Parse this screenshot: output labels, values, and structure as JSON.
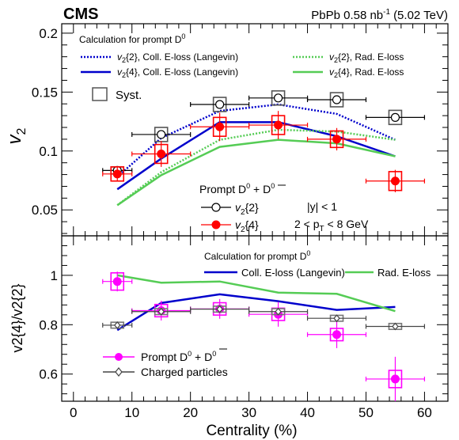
{
  "header": {
    "experiment": "CMS",
    "lumi_label": "PbPb 0.58 nb",
    "lumi_sup": "-1",
    "energy": "(5.02 TeV)"
  },
  "chart_data": [
    {
      "panel": "top",
      "type": "scatter",
      "ylabel": "v",
      "ylabel_sub": "2",
      "xlim": [
        -2,
        64
      ],
      "ylim": [
        0.028,
        0.208
      ],
      "yticks": [
        0.05,
        0.1,
        0.15,
        0.2
      ],
      "ytick_labels": [
        "0.05",
        "0.1",
        "0.15",
        "0.2"
      ],
      "legend_title": "Calculation for prompt D",
      "legend_title_sup": "0",
      "syst_label": "Syst.",
      "data_label": "Prompt D",
      "rapidity_label": "|y| < 1",
      "pt_label": "2 < p",
      "pt_label_sub": "T",
      "pt_label_rest": " < 8 GeV",
      "series": [
        {
          "name": "v2{2}",
          "label_main": "v",
          "label_sub": "2",
          "label_rest": "{2}",
          "marker": "open-circle",
          "color": "#000000",
          "syst_color": "#555555",
          "x": [
            7.5,
            15,
            25,
            35,
            45,
            55
          ],
          "xerr": [
            2.5,
            5,
            5,
            5,
            5,
            5
          ],
          "y": [
            0.0835,
            0.114,
            0.1395,
            0.145,
            0.1435,
            0.1285
          ],
          "yerr": [
            0.002,
            0.002,
            0.002,
            0.002,
            0.002,
            0.002
          ],
          "syst": [
            0.003,
            0.006,
            0.006,
            0.006,
            0.006,
            0.006
          ]
        },
        {
          "name": "v2{4}",
          "label_main": "v",
          "label_sub": "2",
          "label_rest": "{4}",
          "marker": "filled-circle",
          "color": "#ff0000",
          "syst_color": "#ff0000",
          "x": [
            7.5,
            15,
            25,
            35,
            45,
            55
          ],
          "xerr": [
            2.5,
            5,
            5,
            5,
            5,
            5
          ],
          "y": [
            0.0805,
            0.0975,
            0.1205,
            0.122,
            0.11,
            0.0745
          ],
          "yerr": [
            0.006,
            0.011,
            0.012,
            0.012,
            0.0095,
            0.0095
          ],
          "syst": [
            0.006,
            0.008,
            0.008,
            0.008,
            0.007,
            0.008
          ]
        }
      ],
      "models": [
        {
          "label_main": "v",
          "label_sub": "2",
          "label_rest": "{2}, Coll. E-loss (Langevin)",
          "color": "#0000cc",
          "dash": "dotted",
          "x": [
            7.5,
            15,
            25,
            35,
            45,
            55
          ],
          "y": [
            0.078,
            0.111,
            0.134,
            0.1395,
            0.1315,
            0.1095
          ]
        },
        {
          "label_main": "v",
          "label_sub": "2",
          "label_rest": "{4}, Coll. E-loss (Langevin)",
          "color": "#0000cc",
          "dash": "solid",
          "x": [
            7.5,
            15,
            25,
            35,
            45,
            55
          ],
          "y": [
            0.0675,
            0.0935,
            0.1245,
            0.1245,
            0.1125,
            0.0955
          ]
        },
        {
          "label_main": "v",
          "label_sub": "2",
          "label_rest": "{2}, Rad. E-loss",
          "color": "#55cc55",
          "dash": "dotted",
          "x": [
            7.5,
            15,
            25,
            35,
            45,
            55
          ],
          "y": [
            0.054,
            0.082,
            0.1095,
            0.118,
            0.1165,
            0.1095
          ]
        },
        {
          "label_main": "v",
          "label_sub": "2",
          "label_rest": "{4}, Rad. E-loss",
          "color": "#55cc55",
          "dash": "solid",
          "x": [
            7.5,
            15,
            25,
            35,
            45,
            55
          ],
          "y": [
            0.054,
            0.0795,
            0.1035,
            0.1095,
            0.1065,
            0.0955
          ]
        }
      ]
    },
    {
      "panel": "bottom",
      "type": "scatter",
      "ylabel": "v2{4}/v2{2}",
      "xlabel": "Centrality (%)",
      "xlim": [
        -2,
        64
      ],
      "ylim": [
        0.49,
        1.16
      ],
      "xticks": [
        0,
        10,
        20,
        30,
        40,
        50,
        60
      ],
      "xtick_labels": [
        "0",
        "10",
        "20",
        "30",
        "40",
        "50",
        "60"
      ],
      "yticks": [
        0.6,
        0.8,
        1.0
      ],
      "ytick_labels": [
        "0.6",
        "0.8",
        "1"
      ],
      "legend_title": "Calculation for prompt D",
      "legend_title_sup": "0",
      "series": [
        {
          "name": "Prompt D0 + D0bar",
          "label": "Prompt D",
          "marker": "filled-circle",
          "color": "#ff00ff",
          "syst_color": "#ff00ff",
          "x": [
            7.5,
            15,
            25,
            35,
            45,
            55
          ],
          "xerr": [
            2.5,
            5,
            5,
            5,
            5,
            5
          ],
          "y": [
            0.975,
            0.857,
            0.864,
            0.842,
            0.76,
            0.58
          ],
          "yerr": [
            0.04,
            0.04,
            0.04,
            0.05,
            0.055,
            0.09
          ],
          "syst": [
            0.035,
            0.025,
            0.025,
            0.025,
            0.025,
            0.035
          ]
        },
        {
          "name": "Charged particles",
          "label": "Charged particles",
          "marker": "open-diamond",
          "color": "#444444",
          "syst_color": "#777777",
          "x": [
            7.5,
            15,
            25,
            35,
            45,
            55
          ],
          "xerr": [
            2.5,
            5,
            5,
            5,
            5,
            5
          ],
          "y": [
            0.798,
            0.853,
            0.863,
            0.853,
            0.826,
            0.793
          ],
          "yerr": [
            0.004,
            0.004,
            0.004,
            0.004,
            0.004,
            0.004
          ],
          "syst": [
            0.012,
            0.012,
            0.012,
            0.012,
            0.012,
            0.012
          ]
        }
      ],
      "models": [
        {
          "label": "Coll. E-loss (Langevin)",
          "color": "#0000cc",
          "dash": "solid",
          "x": [
            7.5,
            15,
            25,
            35,
            45,
            55
          ],
          "y": [
            0.778,
            0.888,
            0.923,
            0.895,
            0.86,
            0.872
          ]
        },
        {
          "label": "Rad. E-loss",
          "color": "#55cc55",
          "dash": "solid",
          "x": [
            7.5,
            15,
            25,
            35,
            45,
            55
          ],
          "y": [
            1.0,
            0.97,
            0.975,
            0.93,
            0.925,
            0.855
          ]
        }
      ]
    }
  ]
}
